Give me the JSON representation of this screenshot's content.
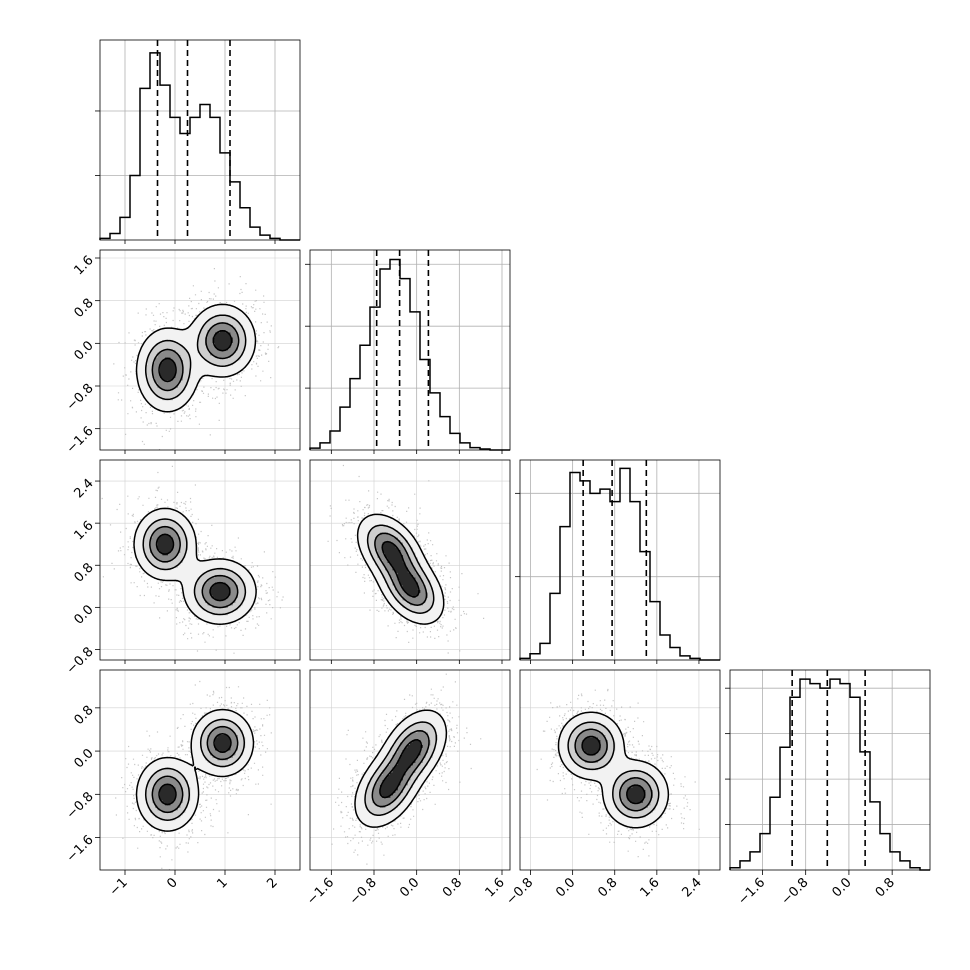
{
  "chart_data": {
    "type": "corner",
    "n_params": 4,
    "diagonal": [
      {
        "type": "histogram",
        "x_range": [
          -1.5,
          2.5
        ],
        "bins": 20,
        "counts": [
          0.5,
          2,
          7,
          20,
          47,
          58,
          48,
          38,
          33,
          38,
          42,
          38,
          27,
          18,
          10,
          4,
          1.5,
          0.5,
          0,
          0
        ],
        "y_max": 62,
        "y_gridlines": [
          20,
          40
        ],
        "quantile_lines": [
          -0.35,
          0.25,
          1.1
        ]
      },
      {
        "type": "histogram",
        "x_range": [
          -2.0,
          1.75
        ],
        "bins": 20,
        "counts": [
          0.4,
          1.5,
          4,
          9,
          15,
          22,
          30,
          38,
          40,
          36,
          29,
          19,
          12,
          7,
          3.5,
          1.5,
          0.5,
          0.2,
          0,
          0
        ],
        "y_max": 42,
        "y_gridlines": [
          13,
          26,
          39
        ],
        "quantile_lines": [
          -0.75,
          -0.32,
          0.22
        ]
      },
      {
        "type": "histogram",
        "x_range": [
          -1.0,
          2.8
        ],
        "bins": 20,
        "counts": [
          0.4,
          1.5,
          4,
          16,
          32,
          45,
          43,
          40,
          41,
          38,
          46,
          38,
          26,
          14,
          6,
          3,
          1,
          0.4,
          0,
          0
        ],
        "y_max": 48,
        "y_gridlines": [
          20,
          40
        ],
        "quantile_lines": [
          0.2,
          0.75,
          1.4
        ]
      },
      {
        "type": "histogram",
        "x_range": [
          -2.2,
          1.5
        ],
        "bins": 20,
        "counts": [
          0.5,
          2,
          4,
          8,
          16,
          27,
          38,
          42,
          41,
          40,
          42,
          41,
          38,
          26,
          15,
          8,
          4,
          2,
          0.5,
          0
        ],
        "y_max": 44,
        "y_gridlines": [
          10,
          20,
          30,
          40
        ],
        "quantile_lines": [
          -1.05,
          -0.4,
          0.3
        ]
      }
    ],
    "parameters": [
      {
        "range": [
          -1.5,
          2.5
        ],
        "ticks": [
          -1,
          0,
          1,
          2
        ],
        "tick_labels": [
          "−1",
          "0",
          "1",
          "2"
        ]
      },
      {
        "range": [
          -2.0,
          1.75
        ],
        "ticks": [
          -1.6,
          -0.8,
          0.0,
          0.8,
          1.6
        ],
        "tick_labels": [
          "−1.6",
          "−0.8",
          "0.0",
          "0.8",
          "1.6"
        ]
      },
      {
        "range": [
          -1.0,
          2.8
        ],
        "ticks": [
          -0.8,
          0.0,
          0.8,
          1.6,
          2.4
        ],
        "tick_labels": [
          "−0.8",
          "0.0",
          "0.8",
          "1.6",
          "2.4"
        ]
      },
      {
        "range": [
          -2.2,
          1.5
        ],
        "ticks": [
          -1.6,
          -0.8,
          0.0,
          0.8
        ],
        "tick_labels": [
          "−1.6",
          "−0.8",
          "0.0",
          "0.8"
        ]
      }
    ],
    "pairs": [
      {
        "row": 1,
        "col": 0,
        "modes": [
          {
            "mx": -0.15,
            "my": -0.5,
            "sx": 0.3,
            "sy": 0.38,
            "rho": 0
          },
          {
            "mx": 0.95,
            "my": 0.05,
            "sx": 0.32,
            "sy": 0.33,
            "rho": 0
          }
        ]
      },
      {
        "row": 2,
        "col": 0,
        "modes": [
          {
            "mx": -0.2,
            "my": 1.2,
            "sx": 0.3,
            "sy": 0.33,
            "rho": 0
          },
          {
            "mx": 0.9,
            "my": 0.3,
            "sx": 0.35,
            "sy": 0.3,
            "rho": 0
          }
        ]
      },
      {
        "row": 3,
        "col": 0,
        "modes": [
          {
            "mx": -0.15,
            "my": -0.8,
            "sx": 0.3,
            "sy": 0.33,
            "rho": 0
          },
          {
            "mx": 0.95,
            "my": 0.15,
            "sx": 0.3,
            "sy": 0.3,
            "rho": 0
          }
        ]
      },
      {
        "row": 2,
        "col": 1,
        "modes": [
          {
            "mx": -0.5,
            "my": 1.1,
            "sx": 0.3,
            "sy": 0.33,
            "rho": -0.4
          },
          {
            "mx": -0.1,
            "my": 0.35,
            "sx": 0.3,
            "sy": 0.33,
            "rho": -0.4
          }
        ]
      },
      {
        "row": 3,
        "col": 1,
        "modes": [
          {
            "mx": -0.55,
            "my": -0.7,
            "sx": 0.3,
            "sy": 0.35,
            "rho": 0.4
          },
          {
            "mx": -0.05,
            "my": 0.05,
            "sx": 0.3,
            "sy": 0.35,
            "rho": 0.4
          }
        ]
      },
      {
        "row": 3,
        "col": 2,
        "modes": [
          {
            "mx": 0.35,
            "my": 0.1,
            "sx": 0.3,
            "sy": 0.3,
            "rho": 0
          },
          {
            "mx": 1.2,
            "my": -0.8,
            "sx": 0.3,
            "sy": 0.3,
            "rho": 0
          }
        ]
      }
    ],
    "contour_levels": [
      0.12,
      0.35,
      0.6,
      0.85
    ],
    "grid": true,
    "colors": {
      "line": "#000000",
      "grid": "#b0b0b0",
      "scatter": "#b8b8b8",
      "shade_max": "#222222"
    }
  }
}
